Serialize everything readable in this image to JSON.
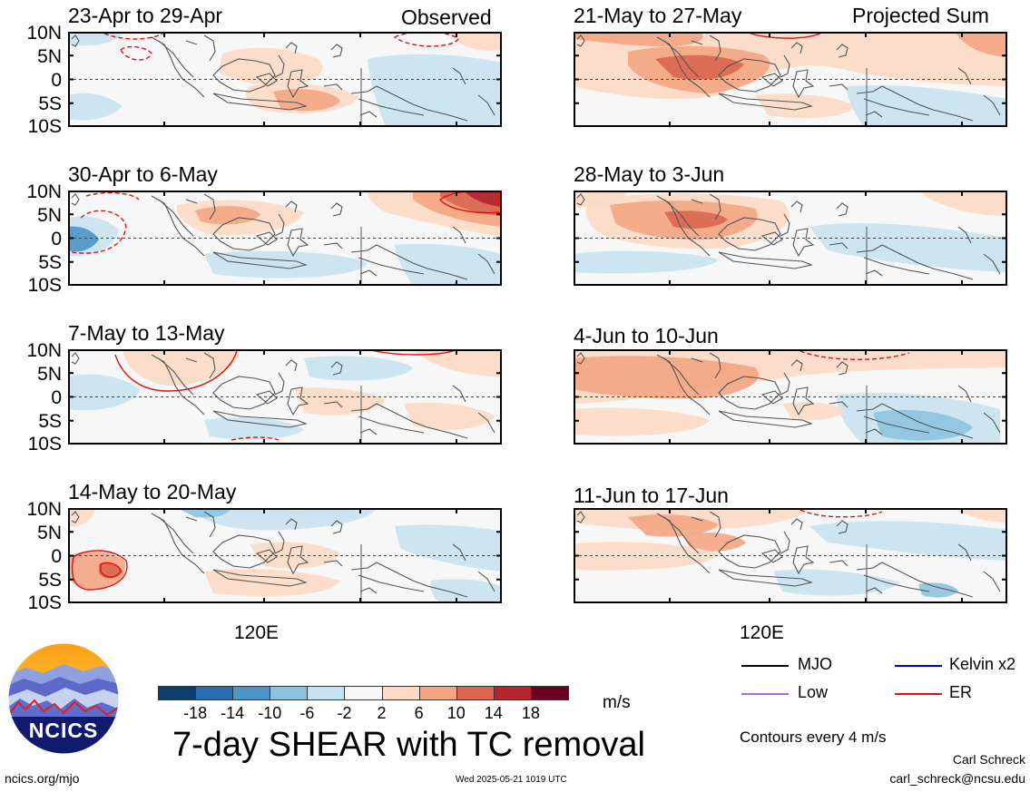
{
  "header": {
    "left_tag": "Observed",
    "right_tag": "Projected Sum"
  },
  "lat_labels": [
    "10N",
    "5N",
    "0",
    "5S",
    "10S"
  ],
  "lon_label": "120E",
  "panels": [
    {
      "title": "23-Apr to 29-Apr"
    },
    {
      "title": "30-Apr to 6-May"
    },
    {
      "title": "7-May to 13-May"
    },
    {
      "title": "14-May to 20-May"
    },
    {
      "title": "21-May to 27-May"
    },
    {
      "title": "28-May to 3-Jun"
    },
    {
      "title": "4-Jun to 10-Jun"
    },
    {
      "title": "11-Jun to 17-Jun"
    }
  ],
  "colorbar": {
    "colors": [
      "#0b3d6e",
      "#2a6db0",
      "#4d95c8",
      "#8ec3df",
      "#c7e2f0",
      "#f7f7f7",
      "#fcd9c4",
      "#f3a583",
      "#dc6651",
      "#b4252e",
      "#6b0020"
    ],
    "tick_labels": [
      "-18",
      "-14",
      "-10",
      "-6",
      "-2",
      "2",
      "6",
      "10",
      "14",
      "18"
    ],
    "units": "m/s"
  },
  "legend": {
    "mjo": "MJO",
    "kelvin": "Kelvin x2",
    "low": "Low",
    "er": "ER",
    "colors": {
      "mjo": "#000000",
      "kelvin": "#0000cc",
      "low": "#b06ad8",
      "er": "#e01010"
    },
    "contour_note": "Contours every 4 m/s"
  },
  "main_title": "7-day SHEAR with TC removal",
  "logo_text": "NCICS",
  "footer": {
    "url": "ncics.org/mjo",
    "timestamp": "Wed 2025-05-21 1019 UTC",
    "author": "Carl Schreck",
    "email": "carl_schreck@ncsu.edu"
  }
}
